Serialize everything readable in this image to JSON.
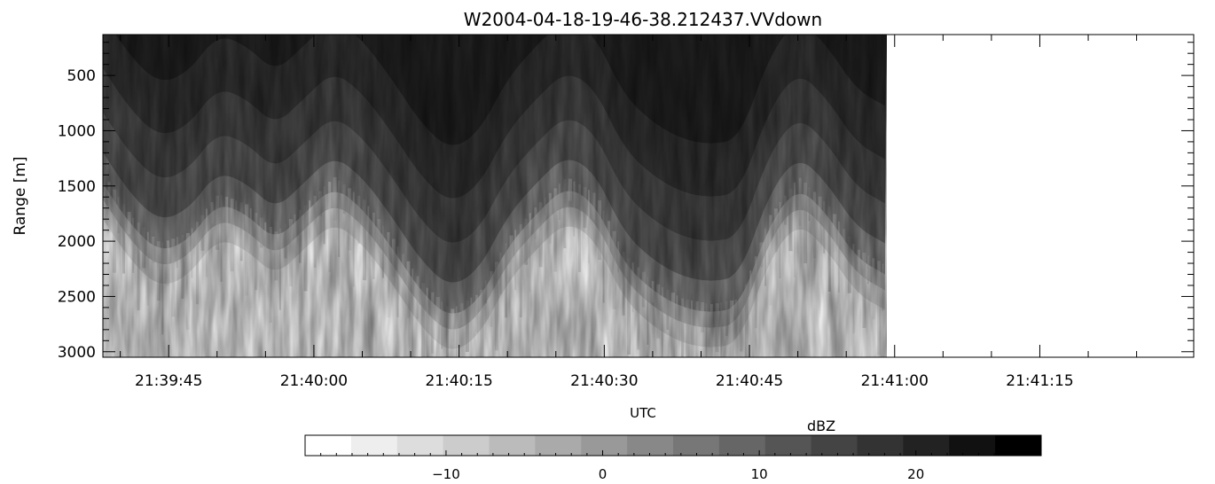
{
  "chart_data": {
    "type": "heatmap",
    "title": "W2004-04-18-19-46-38.212437.VVdown",
    "xlabel": "UTC",
    "ylabel": "Range [m]",
    "x_ticks": [
      "21:39:45",
      "21:40:00",
      "21:40:15",
      "21:40:30",
      "21:40:45",
      "21:41:00",
      "21:41:15"
    ],
    "x_tick_seconds": [
      45,
      60,
      75,
      90,
      105,
      120,
      135
    ],
    "xlim_seconds": [
      38.2,
      150.9
    ],
    "data_end_seconds": 119.2,
    "y_ticks": [
      500,
      1000,
      1500,
      2000,
      2500,
      3000
    ],
    "ylim": [
      3050,
      130
    ],
    "y_inverted": true,
    "colorbar": {
      "label": "dBZ",
      "ticks": [
        -10,
        0,
        10,
        20
      ],
      "range": [
        -19,
        28
      ],
      "levels": 16,
      "colormap": "white-to-black"
    },
    "description_profile": {
      "x_seconds": [
        38,
        41,
        44,
        47,
        50,
        53,
        56,
        59,
        62,
        65,
        68,
        71,
        74,
        77,
        80,
        83,
        86,
        89,
        92,
        95,
        98,
        101,
        104,
        107,
        110,
        113,
        116,
        119
      ],
      "echo_base_range": [
        1450,
        1850,
        2100,
        2000,
        1650,
        1750,
        2000,
        1750,
        1500,
        1700,
        2050,
        2450,
        2700,
        2550,
        2050,
        1750,
        1500,
        1650,
        2200,
        2450,
        2600,
        2650,
        2600,
        1850,
        1500,
        1750,
        2150,
        2300
      ]
    }
  }
}
